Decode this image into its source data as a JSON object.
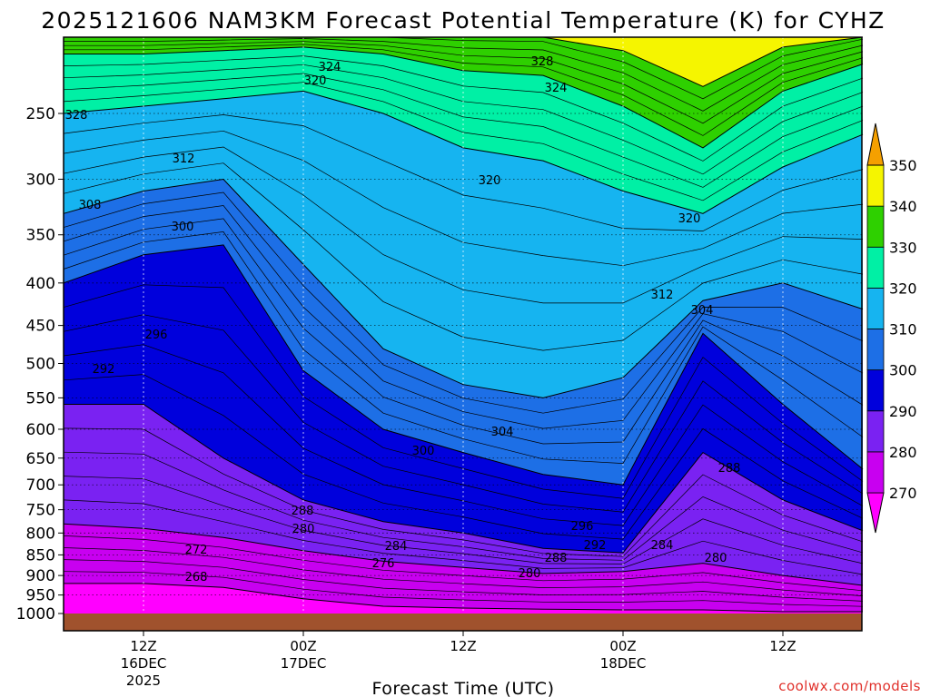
{
  "chart_data": {
    "type": "heatmap",
    "title": "2025121606 NAM3KM Forecast Potential Temperature (K) for CYHZ",
    "xlabel": "Forecast Time (UTC)",
    "ylabel": "",
    "y_scale": "log-pressure",
    "y_ticks": [
      "250",
      "300",
      "350",
      "400",
      "450",
      "500",
      "550",
      "600",
      "650",
      "700",
      "750",
      "800",
      "850",
      "900",
      "950",
      "1000"
    ],
    "ylim": [
      1000,
      200
    ],
    "x_ticks": [
      {
        "time": "2025-12-16 12Z",
        "lines": [
          "12Z",
          "16DEC",
          "2025"
        ]
      },
      {
        "time": "2025-12-17 00Z",
        "lines": [
          "00Z",
          "17DEC"
        ]
      },
      {
        "time": "2025-12-17 12Z",
        "lines": [
          "12Z"
        ]
      },
      {
        "time": "2025-12-18 00Z",
        "lines": [
          "00Z",
          "18DEC"
        ]
      },
      {
        "time": "2025-12-18 12Z",
        "lines": [
          "12Z"
        ]
      }
    ],
    "xlim": [
      "2025-12-16 06Z",
      "2025-12-18 18Z"
    ],
    "grid": true,
    "colorbar": {
      "levels": [
        "270",
        "280",
        "290",
        "300",
        "310",
        "320",
        "330",
        "340",
        "350"
      ],
      "colors": [
        "#ff00ff",
        "#c800f0",
        "#7a22f2",
        "#0000dc",
        "#1d6fe6",
        "#16b4f0",
        "#00f0a5",
        "#2ed000",
        "#f5f500",
        "#f5a000"
      ]
    },
    "ground_color": "#a0522d",
    "contour_labels": [
      "324",
      "328",
      "320",
      "328",
      "324",
      "320",
      "312",
      "320",
      "308",
      "312",
      "300",
      "304",
      "296",
      "292",
      "304",
      "300",
      "288",
      "296",
      "288",
      "292",
      "284",
      "280",
      "284",
      "288",
      "276",
      "272",
      "280",
      "280",
      "268"
    ],
    "series": [
      {
        "name": "270",
        "x": [
          "16DEC 06Z",
          "16DEC 12Z",
          "16DEC 18Z",
          "17DEC 00Z",
          "17DEC 06Z",
          "17DEC 12Z",
          "17DEC 18Z",
          "18DEC 00Z",
          "18DEC 06Z",
          "18DEC 12Z",
          "18DEC 18Z"
        ],
        "y": [
          920,
          920,
          930,
          960,
          980,
          985,
          988,
          990,
          990,
          995,
          995
        ]
      },
      {
        "name": "280",
        "x": [
          "16DEC 06Z",
          "16DEC 12Z",
          "16DEC 18Z",
          "17DEC 00Z",
          "17DEC 06Z",
          "17DEC 12Z",
          "17DEC 18Z",
          "18DEC 00Z",
          "18DEC 06Z",
          "18DEC 12Z",
          "18DEC 18Z"
        ],
        "y": [
          780,
          790,
          810,
          840,
          865,
          880,
          895,
          890,
          870,
          900,
          925
        ]
      },
      {
        "name": "290",
        "x": [
          "16DEC 06Z",
          "16DEC 12Z",
          "16DEC 18Z",
          "17DEC 00Z",
          "17DEC 06Z",
          "17DEC 12Z",
          "17DEC 18Z",
          "18DEC 00Z",
          "18DEC 06Z",
          "18DEC 12Z",
          "18DEC 18Z"
        ],
        "y": [
          560,
          560,
          650,
          730,
          775,
          800,
          835,
          845,
          640,
          730,
          795
        ]
      },
      {
        "name": "300",
        "x": [
          "16DEC 06Z",
          "16DEC 12Z",
          "16DEC 18Z",
          "17DEC 00Z",
          "17DEC 06Z",
          "17DEC 12Z",
          "17DEC 18Z",
          "18DEC 00Z",
          "18DEC 06Z",
          "18DEC 12Z",
          "18DEC 18Z"
        ],
        "y": [
          400,
          370,
          360,
          510,
          600,
          640,
          680,
          700,
          460,
          560,
          670
        ]
      },
      {
        "name": "310",
        "x": [
          "16DEC 06Z",
          "16DEC 12Z",
          "16DEC 18Z",
          "17DEC 00Z",
          "17DEC 06Z",
          "17DEC 12Z",
          "17DEC 18Z",
          "18DEC 00Z",
          "18DEC 06Z",
          "18DEC 12Z",
          "18DEC 18Z"
        ],
        "y": [
          330,
          310,
          300,
          380,
          480,
          530,
          550,
          520,
          420,
          400,
          430
        ]
      },
      {
        "name": "320",
        "x": [
          "16DEC 06Z",
          "16DEC 12Z",
          "16DEC 18Z",
          "17DEC 00Z",
          "17DEC 06Z",
          "17DEC 12Z",
          "17DEC 18Z",
          "18DEC 00Z",
          "18DEC 06Z",
          "18DEC 12Z",
          "18DEC 18Z"
        ],
        "y": [
          250,
          245,
          240,
          235,
          250,
          275,
          285,
          310,
          330,
          290,
          265
        ]
      },
      {
        "name": "330",
        "x": [
          "16DEC 06Z",
          "16DEC 12Z",
          "16DEC 18Z",
          "17DEC 00Z",
          "17DEC 06Z",
          "17DEC 12Z",
          "17DEC 18Z",
          "18DEC 00Z",
          "18DEC 06Z",
          "18DEC 12Z",
          "18DEC 18Z"
        ],
        "y": [
          212,
          212,
          210,
          208,
          212,
          222,
          225,
          245,
          275,
          235,
          218
        ]
      },
      {
        "name": "340",
        "x": [
          "16DEC 06Z",
          "16DEC 12Z",
          "16DEC 18Z",
          "17DEC 00Z",
          "17DEC 06Z",
          "17DEC 12Z",
          "17DEC 18Z",
          "18DEC 00Z",
          "18DEC 06Z",
          "18DEC 12Z",
          "18DEC 18Z"
        ],
        "y": [
          200,
          200,
          200,
          200,
          200,
          200,
          200,
          210,
          232,
          208,
          200
        ]
      }
    ]
  },
  "credit": "coolwx.com/models"
}
